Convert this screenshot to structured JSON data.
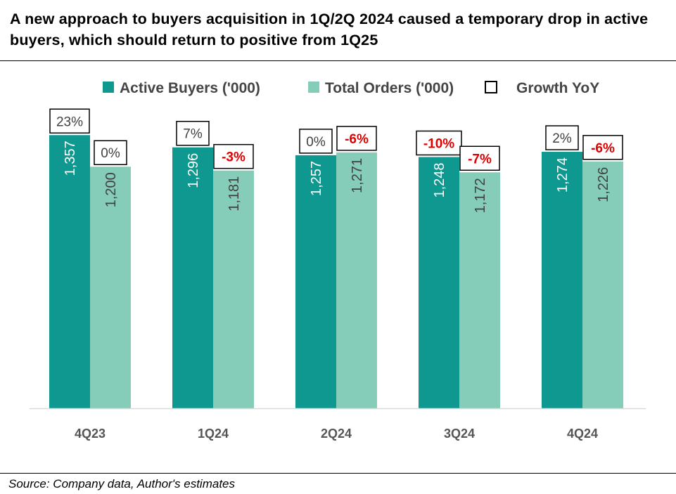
{
  "title": "A new approach to buyers acquisition in 1Q/2Q 2024 caused a temporary drop in active buyers, which should return to positive from 1Q25",
  "source": "Source: Company data, Author's estimates",
  "colors": {
    "active": "#0f9890",
    "orders": "#85cdb9",
    "negative": "#e00000",
    "axis": "#d9d9d9"
  },
  "chart_data": {
    "type": "bar",
    "categories": [
      "4Q23",
      "1Q24",
      "2Q24",
      "3Q24",
      "4Q24"
    ],
    "series": [
      {
        "name": "Active Buyers ('000)",
        "values": [
          1357,
          1296,
          1257,
          1248,
          1274
        ],
        "labels": [
          "1,357",
          "1,296",
          "1,257",
          "1,248",
          "1,274"
        ],
        "growth": [
          "23%",
          "7%",
          "0%",
          "-10%",
          "2%"
        ],
        "growth_values": [
          23,
          7,
          0,
          -10,
          2
        ]
      },
      {
        "name": "Total Orders ('000)",
        "values": [
          1200,
          1181,
          1271,
          1172,
          1226
        ],
        "labels": [
          "1,200",
          "1,181",
          "1,271",
          "1,172",
          "1,226"
        ],
        "growth": [
          "0%",
          "-3%",
          "-6%",
          "-7%",
          "-6%"
        ],
        "growth_values": [
          0,
          -3,
          -6,
          -7,
          -6
        ]
      }
    ],
    "legend": [
      "Active Buyers ('000)",
      "Total Orders ('000)",
      "Growth YoY"
    ],
    "legend_position": "top",
    "ylim": [
      0,
      1500
    ],
    "grid": false
  }
}
